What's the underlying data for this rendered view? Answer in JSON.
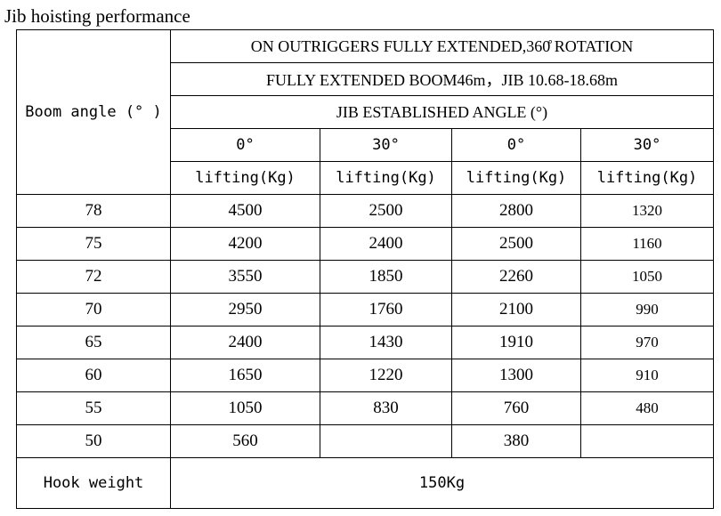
{
  "title": "Jib hoisting performance",
  "table": {
    "row_header": "Boom angle (° )",
    "header1": "ON OUTRIGGERS FULLY EXTENDED,360̊  ROTATION",
    "header2": "FULLY EXTENDED BOOM46m，JIB 10.68-18.68m",
    "header3": "JIB ESTABLISHED ANGLE (°)",
    "angles": [
      "0°",
      "30°",
      "0°",
      "30°"
    ],
    "units": [
      "lifting(Kg)",
      "lifting(Kg)",
      "lifting(Kg)",
      "lifting(Kg)"
    ],
    "rows": [
      {
        "angle": "78",
        "values": [
          "4500",
          "2500",
          "2800",
          "1320"
        ]
      },
      {
        "angle": "75",
        "values": [
          "4200",
          "2400",
          "2500",
          "1160"
        ]
      },
      {
        "angle": "72",
        "values": [
          "3550",
          "1850",
          "2260",
          "1050"
        ]
      },
      {
        "angle": "70",
        "values": [
          "2950",
          "1760",
          "2100",
          "990"
        ]
      },
      {
        "angle": "65",
        "values": [
          "2400",
          "1430",
          "1910",
          "970"
        ]
      },
      {
        "angle": "60",
        "values": [
          "1650",
          "1220",
          "1300",
          "910"
        ]
      },
      {
        "angle": "55",
        "values": [
          "1050",
          "830",
          "760",
          "480"
        ]
      },
      {
        "angle": "50",
        "values": [
          "560",
          "",
          "380",
          ""
        ]
      }
    ],
    "hook_label": "Hook weight",
    "hook_value": "150Kg"
  }
}
